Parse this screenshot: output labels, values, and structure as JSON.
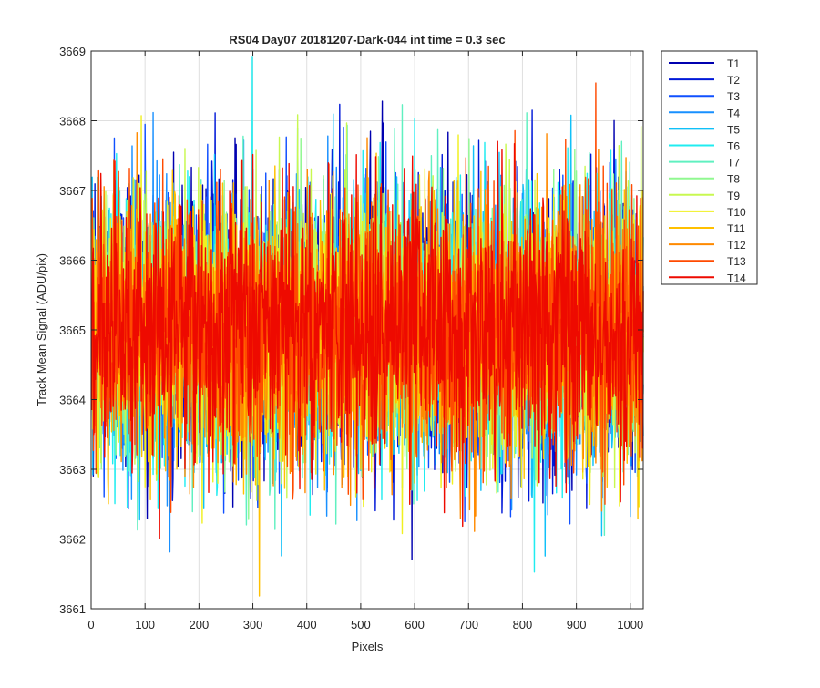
{
  "chart_data": {
    "type": "line",
    "title": "RS04 Day07 20181207-Dark-044 int time = 0.3 sec",
    "xlabel": "Pixels",
    "ylabel": "Track Mean Signal (ADU/pix)",
    "xlim": [
      0,
      1024
    ],
    "ylim": [
      3661,
      3669
    ],
    "x_ticks": [
      0,
      100,
      200,
      300,
      400,
      500,
      600,
      700,
      800,
      900,
      1000
    ],
    "y_ticks": [
      3661,
      3662,
      3663,
      3664,
      3665,
      3666,
      3667,
      3668,
      3669
    ],
    "grid": true,
    "legend_position": "outside-top-right",
    "n_points": 1024,
    "x_start": 1,
    "noise_mean": 3665.0,
    "noise_std": 0.95,
    "series": [
      {
        "name": "T1",
        "color": "#0000b0",
        "mean": 3665.0,
        "std": 0.95,
        "seed": 11
      },
      {
        "name": "T2",
        "color": "#0018d8",
        "mean": 3665.0,
        "std": 0.95,
        "seed": 23
      },
      {
        "name": "T3",
        "color": "#1050ff",
        "mean": 3665.0,
        "std": 0.95,
        "seed": 37
      },
      {
        "name": "T4",
        "color": "#1890ff",
        "mean": 3665.0,
        "std": 0.95,
        "seed": 41
      },
      {
        "name": "T5",
        "color": "#10c0f8",
        "mean": 3665.0,
        "std": 0.95,
        "seed": 53
      },
      {
        "name": "T6",
        "color": "#20ecf0",
        "mean": 3665.0,
        "std": 0.95,
        "seed": 67
      },
      {
        "name": "T7",
        "color": "#60f0c0",
        "mean": 3665.0,
        "std": 0.95,
        "seed": 71
      },
      {
        "name": "T8",
        "color": "#90f890",
        "mean": 3665.0,
        "std": 0.95,
        "seed": 83
      },
      {
        "name": "T9",
        "color": "#c8f850",
        "mean": 3665.0,
        "std": 0.95,
        "seed": 97
      },
      {
        "name": "T10",
        "color": "#f0f020",
        "mean": 3665.0,
        "std": 0.95,
        "seed": 101
      },
      {
        "name": "T11",
        "color": "#ffc000",
        "mean": 3665.0,
        "std": 0.95,
        "seed": 113
      },
      {
        "name": "T12",
        "color": "#ff8a00",
        "mean": 3665.0,
        "std": 0.95,
        "seed": 127
      },
      {
        "name": "T13",
        "color": "#ff4a00",
        "mean": 3665.0,
        "std": 0.95,
        "seed": 131
      },
      {
        "name": "T14",
        "color": "#ee0a00",
        "mean": 3665.0,
        "std": 0.95,
        "seed": 149
      }
    ],
    "axes_color": "#262626",
    "grid_color": "#dfdfdf"
  }
}
